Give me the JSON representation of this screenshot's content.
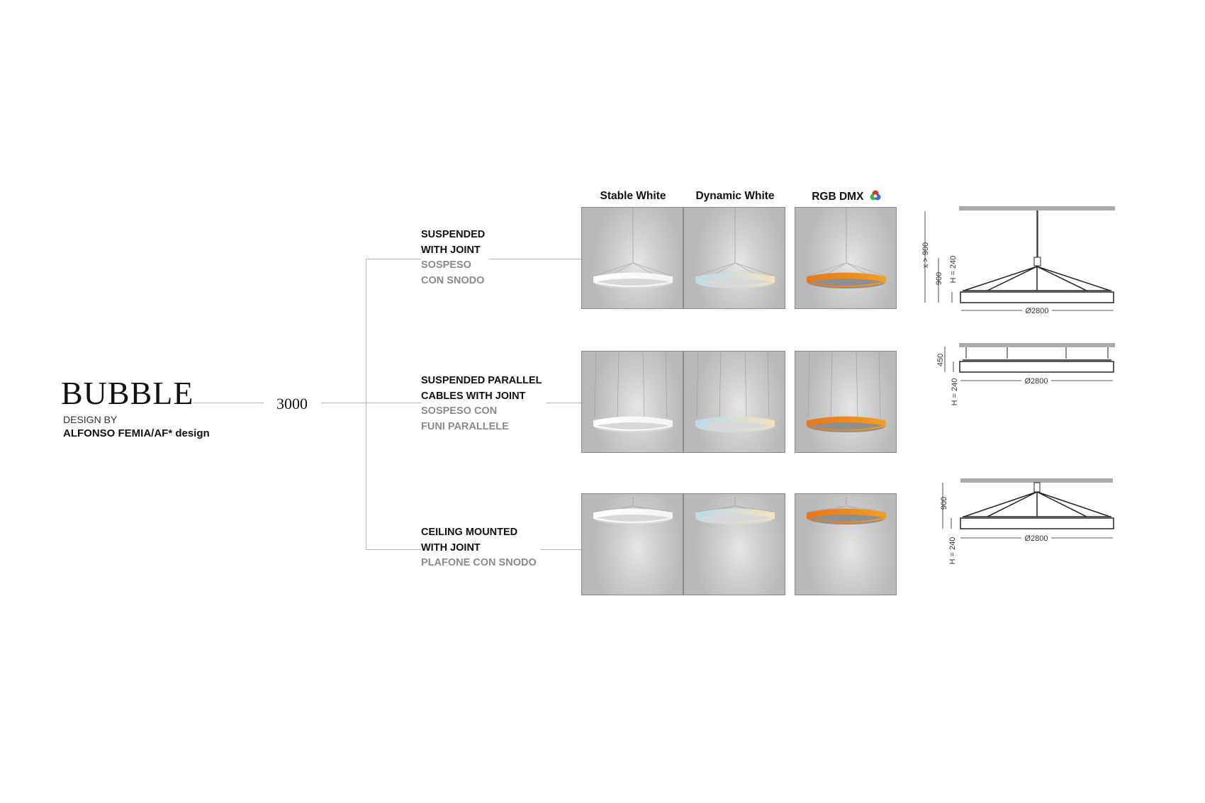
{
  "product": {
    "name": "BUBBLE",
    "design_by_label": "DESIGN BY",
    "designer": "ALFONSO FEMIA/AF* design",
    "size": "3000"
  },
  "columns": [
    {
      "label": "Stable White",
      "ring_colors": [
        "#ffffff",
        "#f4f4f4"
      ]
    },
    {
      "label": "Dynamic White",
      "ring_colors": [
        "#b9dbe8",
        "#f3e3be"
      ]
    },
    {
      "label": "RGB DMX",
      "icon": "rgb-color-wheel-icon",
      "ring_colors": [
        "#e8761a",
        "#f0a020"
      ]
    }
  ],
  "rows": [
    {
      "en": [
        "SUSPENDED",
        "WITH JOINT"
      ],
      "it": [
        "SOSPESO",
        "CON SNODO"
      ]
    },
    {
      "en": [
        "SUSPENDED PARALLEL",
        "CABLES WITH JOINT"
      ],
      "it": [
        "SOSPESO CON",
        "FUNI PARALLELE"
      ]
    },
    {
      "en": [
        "CEILING MOUNTED",
        "WITH JOINT"
      ],
      "it": [
        "PLAFONE CON SNODO"
      ]
    }
  ],
  "drawings": {
    "row1": {
      "diameter": "Ø2800",
      "overall": "x > 900",
      "drop": "900",
      "height": "H = 240"
    },
    "row2": {
      "diameter": "Ø2800",
      "drop": "450",
      "height": "H = 240"
    },
    "row3": {
      "diameter": "Ø2800",
      "drop": "900",
      "height": "H = 240"
    }
  }
}
